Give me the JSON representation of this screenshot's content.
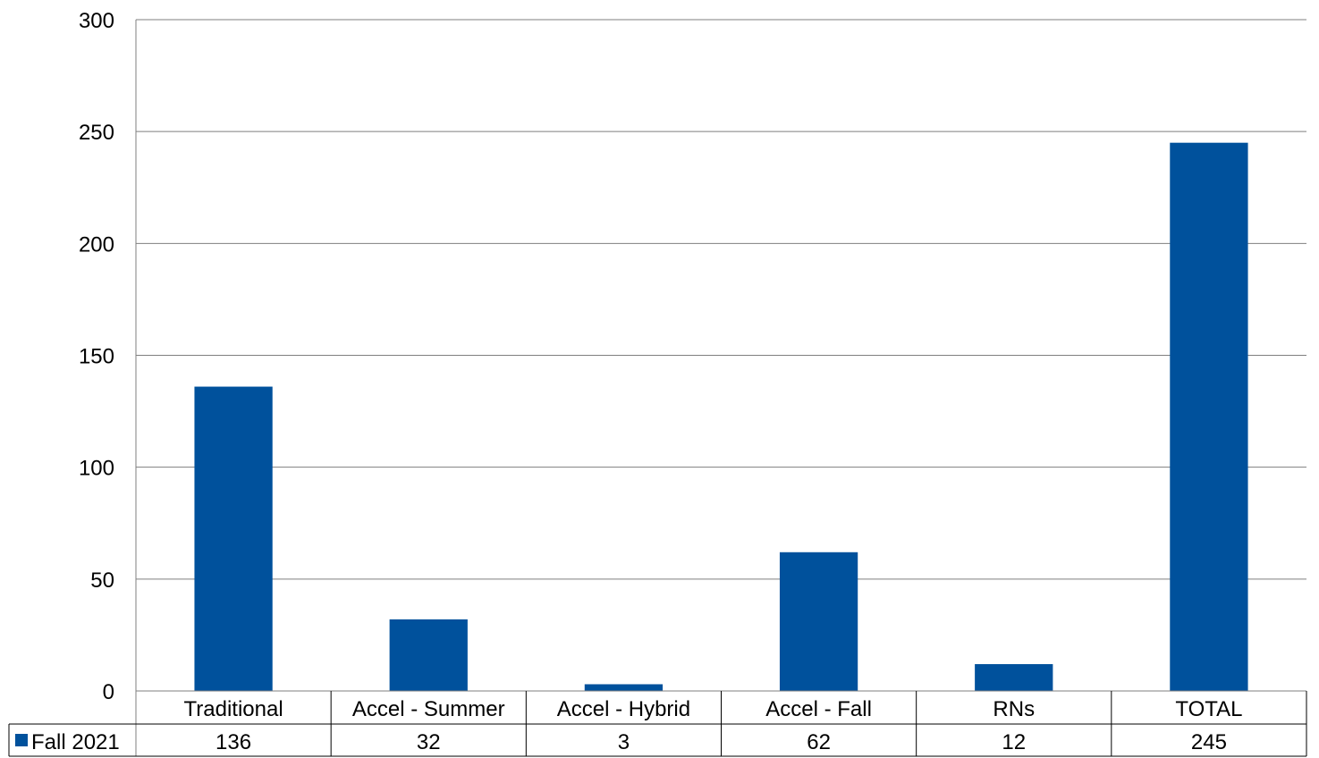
{
  "chart_data": {
    "type": "bar",
    "categories": [
      "Traditional",
      "Accel - Summer",
      "Accel - Hybrid",
      "Accel - Fall",
      "RNs",
      "TOTAL"
    ],
    "series": [
      {
        "name": "Fall 2021",
        "values": [
          136,
          32,
          3,
          62,
          12,
          245
        ],
        "color": "#00519C"
      }
    ],
    "ylim": [
      0,
      300
    ],
    "yticks": [
      0,
      50,
      100,
      150,
      200,
      250,
      300
    ],
    "grid": true,
    "legend": "data-table-left",
    "data_table": true
  }
}
